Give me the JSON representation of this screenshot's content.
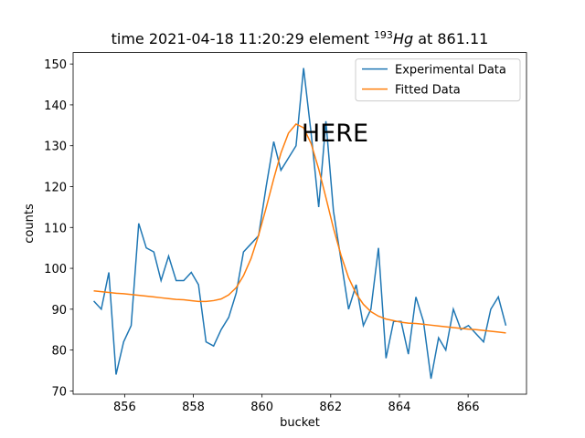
{
  "chart_data": {
    "type": "line",
    "title": [
      "time 2021-04-18 11:20:29 element ",
      "193",
      "Hg",
      " at 861.11"
    ],
    "x_label": "bucket",
    "y_label": "counts",
    "x": [
      855.1,
      855.32,
      855.54,
      855.75,
      855.97,
      856.19,
      856.41,
      856.63,
      856.85,
      857.06,
      857.28,
      857.5,
      857.72,
      857.94,
      858.15,
      858.37,
      858.59,
      858.81,
      859.03,
      859.25,
      859.46,
      859.68,
      859.9,
      860.12,
      860.34,
      860.55,
      860.77,
      860.99,
      861.21,
      861.43,
      861.65,
      861.86,
      862.08,
      862.3,
      862.52,
      862.74,
      862.95,
      863.17,
      863.39,
      863.61,
      863.83,
      864.05,
      864.26,
      864.48,
      864.7,
      864.92,
      865.14,
      865.35,
      865.57,
      865.79,
      866.01,
      866.23,
      866.45,
      866.66,
      866.88,
      867.1
    ],
    "series": [
      {
        "name": "Experimental Data",
        "color": "#1f77b4",
        "values": [
          92,
          90,
          99,
          74,
          82,
          86,
          111,
          105,
          104,
          97,
          103,
          97,
          97,
          99,
          96,
          82,
          81,
          85,
          88,
          94,
          104,
          106,
          108,
          120,
          131,
          124,
          127,
          130,
          149,
          133,
          115,
          136,
          114,
          102,
          90,
          96,
          86,
          90,
          105,
          78,
          87,
          87,
          79,
          93,
          87,
          73,
          83,
          80,
          90,
          85,
          86,
          84,
          82,
          90,
          93,
          86
        ]
      },
      {
        "name": "Fitted Data",
        "color": "#ff7f0e",
        "values": [
          94.5,
          94.3,
          94.1,
          93.9,
          93.8,
          93.6,
          93.4,
          93.2,
          93.0,
          92.8,
          92.6,
          92.4,
          92.3,
          92.1,
          91.9,
          91.9,
          92.1,
          92.5,
          93.5,
          95.3,
          98.2,
          102.4,
          108.1,
          114.8,
          121.9,
          128.2,
          133.1,
          135.3,
          134.4,
          130.5,
          124.3,
          117.3,
          109.8,
          103.2,
          97.7,
          93.8,
          91.2,
          89.4,
          88.3,
          87.6,
          87.2,
          86.8,
          86.6,
          86.5,
          86.3,
          86.1,
          85.9,
          85.7,
          85.5,
          85.3,
          85.1,
          85.0,
          84.8,
          84.6,
          84.4,
          84.2
        ]
      }
    ],
    "xlim": [
      854.5,
      867.7
    ],
    "ylim": [
      69.2,
      152.8
    ],
    "xticks": [
      856,
      858,
      860,
      862,
      864,
      866
    ],
    "yticks": [
      70,
      80,
      90,
      100,
      110,
      120,
      130,
      140,
      150
    ],
    "legend": "upper right",
    "annotation": {
      "text": "HERE",
      "x": 861.15,
      "y": 131,
      "color": "#ff0000"
    }
  }
}
